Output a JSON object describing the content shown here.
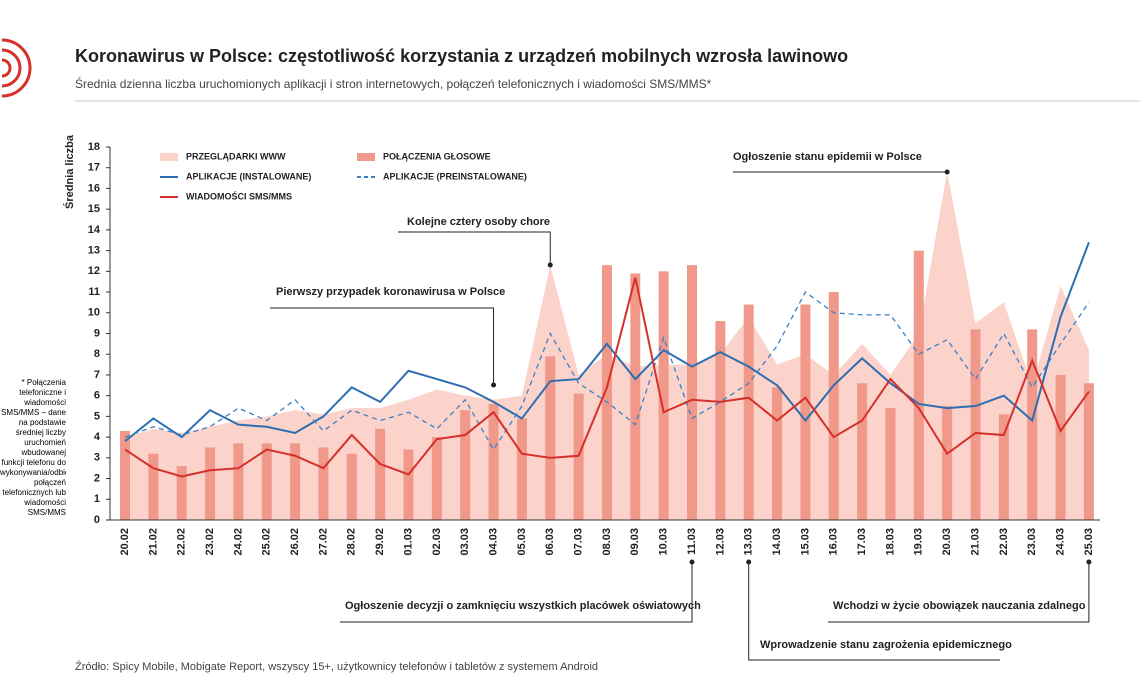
{
  "chart_data": {
    "type": "combo",
    "title": "Koronawirus w Polsce: częstotliwość korzystania z urządzeń mobilnych wzrosła lawinowo",
    "subtitle": "Średnia dzienna liczba uruchomionych aplikacji i stron internetowych, połączeń telefonicznych i wiadomości SMS/MMS*",
    "y_label": "Średnia liczba",
    "footnote": "* Połączenia telefoniczne i wiadomości SMS/MMS – dane na podstawie średniej liczby uruchomień wbudowanej funkcji telefonu do wykonywania/odbierania połączeń telefonicznych lub wiadomości SMS/MMS",
    "source": "Źródło: Spicy Mobile, Mobigate Report, wszyscy 15+, użytkownicy telefonów i tabletów z systemem Android",
    "categories": [
      "20.02",
      "21.02",
      "22.02",
      "23.02",
      "24.02",
      "25.02",
      "26.02",
      "27.02",
      "28.02",
      "29.02",
      "01.03",
      "02.03",
      "03.03",
      "04.03",
      "05.03",
      "06.03",
      "07.03",
      "08.03",
      "09.03",
      "10.03",
      "11.03",
      "12.03",
      "13.03",
      "14.03",
      "15.03",
      "16.03",
      "17.03",
      "18.03",
      "19.03",
      "20.03",
      "21.03",
      "22.03",
      "23.03",
      "24.03",
      "25.03"
    ],
    "ylim": [
      0,
      18
    ],
    "yticks": [
      0,
      1,
      2,
      3,
      4,
      5,
      6,
      7,
      8,
      9,
      10,
      11,
      12,
      13,
      14,
      15,
      16,
      17,
      18
    ],
    "series": [
      {
        "name": "PRZEGLĄDARKI WWW",
        "kind": "area",
        "color": "#fbd3cb",
        "values": [
          4.0,
          4.4,
          4.2,
          4.5,
          4.8,
          5.0,
          5.3,
          5.1,
          5.4,
          5.4,
          5.8,
          6.3,
          6.0,
          5.8,
          6.0,
          12.3,
          7.0,
          8.0,
          7.4,
          7.5,
          7.5,
          8.0,
          9.8,
          7.5,
          8.0,
          7.0,
          8.5,
          7.0,
          9.0,
          16.8,
          9.5,
          10.5,
          6.5,
          11.3,
          8.2
        ]
      },
      {
        "name": "POŁĄCZENIA GŁOSOWE",
        "kind": "bar",
        "color": "#f0998a",
        "values": [
          4.3,
          3.2,
          2.6,
          3.5,
          3.7,
          3.7,
          3.7,
          3.5,
          3.2,
          4.4,
          3.4,
          4.0,
          5.3,
          5.6,
          4.9,
          7.9,
          6.1,
          12.3,
          11.9,
          12.0,
          12.3,
          9.6,
          10.4,
          6.4,
          10.4,
          11.0,
          6.6,
          5.4,
          13.0,
          5.5,
          9.2,
          5.1,
          9.2,
          7.0,
          6.6
        ]
      },
      {
        "name": "APLIKACJE (INSTALOWANE)",
        "kind": "line",
        "dashed": false,
        "color": "#2d6eb0",
        "values": [
          3.8,
          4.9,
          4.0,
          5.3,
          4.6,
          4.5,
          4.2,
          5.0,
          6.4,
          5.7,
          7.2,
          6.8,
          6.4,
          5.7,
          4.9,
          6.7,
          6.8,
          8.5,
          6.8,
          8.2,
          7.4,
          8.1,
          7.4,
          6.5,
          4.8,
          6.5,
          7.8,
          6.6,
          5.6,
          5.4,
          5.5,
          6.0,
          4.8,
          9.8,
          13.4
        ]
      },
      {
        "name": "APLIKACJE (PREINSTALOWANE)",
        "kind": "line",
        "dashed": true,
        "color": "#3a80c8",
        "values": [
          4.0,
          4.5,
          4.1,
          4.5,
          5.4,
          4.8,
          5.8,
          4.3,
          5.3,
          4.8,
          5.2,
          4.4,
          5.8,
          3.4,
          5.5,
          9.0,
          6.6,
          5.7,
          4.6,
          8.8,
          4.9,
          5.7,
          6.6,
          8.4,
          11.0,
          10.0,
          9.9,
          9.9,
          8.0,
          8.7,
          6.8,
          9.0,
          6.4,
          8.5,
          10.5
        ]
      },
      {
        "name": "WIADOMOŚCI SMS/MMS",
        "kind": "line",
        "dashed": false,
        "color": "#d6302a",
        "values": [
          3.4,
          2.5,
          2.1,
          2.4,
          2.5,
          3.4,
          3.1,
          2.5,
          4.1,
          2.7,
          2.2,
          3.9,
          4.1,
          5.2,
          3.2,
          3.0,
          3.1,
          6.4,
          11.7,
          5.2,
          5.8,
          5.7,
          5.9,
          4.8,
          5.9,
          4.0,
          4.8,
          6.8,
          5.4,
          3.2,
          4.2,
          4.1,
          7.7,
          4.3,
          6.2
        ]
      }
    ],
    "annotations": [
      "Ogłoszenie stanu epidemii w Polsce",
      "Kolejne cztery osoby chore",
      "Pierwszy przypadek koronawirusa w Polsce",
      "Ogłoszenie decyzji o zamknięciu wszystkich placówek oświatowych",
      "Wprowadzenie stanu zagrożenia epidemicznego",
      "Wchodzi w życie obowiązek nauczania zdalnego"
    ]
  }
}
